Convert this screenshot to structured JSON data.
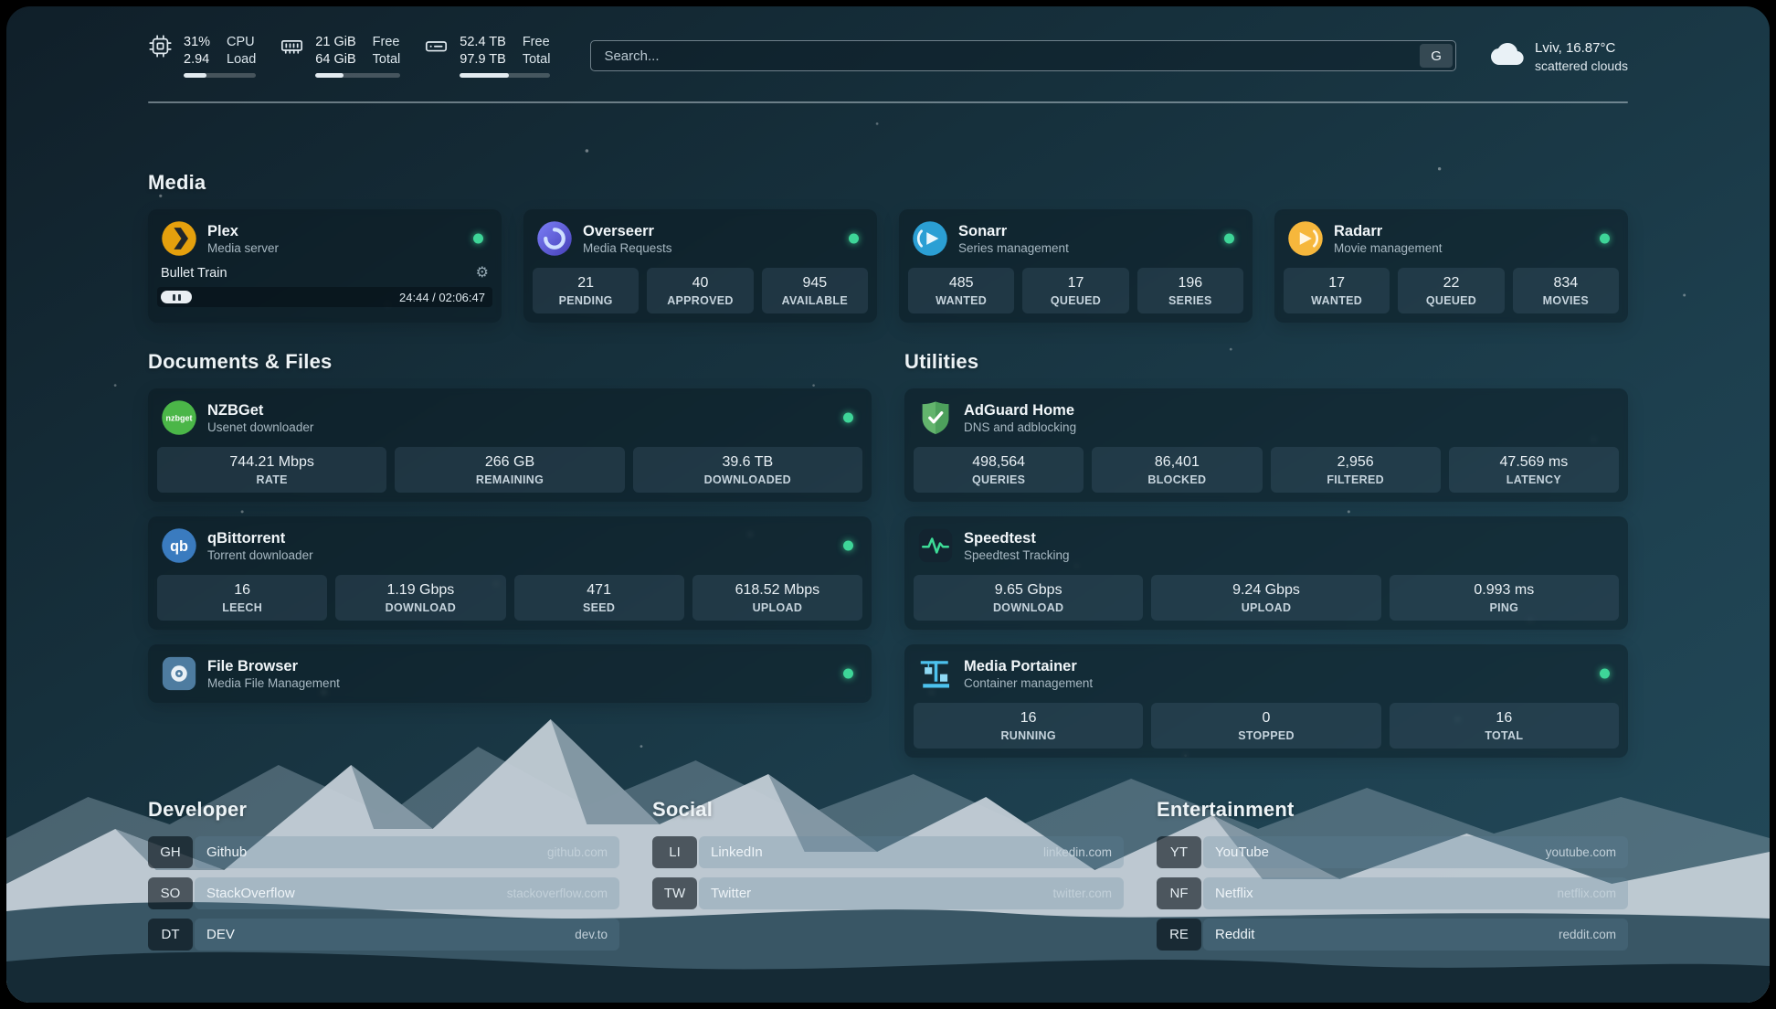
{
  "header": {
    "resources": [
      {
        "icon": "cpu-icon",
        "row1_value": "31%",
        "row1_label": "CPU",
        "row2_value": "2.94",
        "row2_label": "Load",
        "bar_percent": 31
      },
      {
        "icon": "memory-icon",
        "row1_value": "21 GiB",
        "row1_label": "Free",
        "row2_value": "64 GiB",
        "row2_label": "Total",
        "bar_percent": 33
      },
      {
        "icon": "disk-icon",
        "row1_value": "52.4 TB",
        "row1_label": "Free",
        "row2_value": "97.9 TB",
        "row2_label": "Total",
        "bar_percent": 54
      }
    ],
    "search": {
      "placeholder": "Search...",
      "provider_label": "G"
    },
    "weather": {
      "icon": "cloud-icon",
      "location": "Lviv, 16.87°C",
      "condition": "scattered clouds"
    }
  },
  "sections": {
    "media": {
      "title": "Media",
      "services": [
        {
          "icon": "plex-icon",
          "name": "Plex",
          "subtitle": "Media server",
          "status": "online",
          "player": {
            "track": "Bullet Train",
            "time": "24:44 / 02:06:47"
          }
        },
        {
          "icon": "overseerr-icon",
          "name": "Overseerr",
          "subtitle": "Media Requests",
          "status": "online",
          "stats": [
            {
              "value": "21",
              "label": "PENDING"
            },
            {
              "value": "40",
              "label": "APPROVED"
            },
            {
              "value": "945",
              "label": "AVAILABLE"
            }
          ]
        },
        {
          "icon": "sonarr-icon",
          "name": "Sonarr",
          "subtitle": "Series management",
          "status": "online",
          "stats": [
            {
              "value": "485",
              "label": "WANTED"
            },
            {
              "value": "17",
              "label": "QUEUED"
            },
            {
              "value": "196",
              "label": "SERIES"
            }
          ]
        },
        {
          "icon": "radarr-icon",
          "name": "Radarr",
          "subtitle": "Movie management",
          "status": "online",
          "stats": [
            {
              "value": "17",
              "label": "WANTED"
            },
            {
              "value": "22",
              "label": "QUEUED"
            },
            {
              "value": "834",
              "label": "MOVIES"
            }
          ]
        }
      ]
    },
    "documents": {
      "title": "Documents & Files",
      "services": [
        {
          "icon": "nzbget-icon",
          "name": "NZBGet",
          "subtitle": "Usenet downloader",
          "status": "online",
          "stats": [
            {
              "value": "744.21 Mbps",
              "label": "RATE"
            },
            {
              "value": "266 GB",
              "label": "REMAINING"
            },
            {
              "value": "39.6 TB",
              "label": "DOWNLOADED"
            }
          ]
        },
        {
          "icon": "qbittorrent-icon",
          "name": "qBittorrent",
          "subtitle": "Torrent downloader",
          "status": "online",
          "stats": [
            {
              "value": "16",
              "label": "LEECH"
            },
            {
              "value": "1.19 Gbps",
              "label": "DOWNLOAD"
            },
            {
              "value": "471",
              "label": "SEED"
            },
            {
              "value": "618.52 Mbps",
              "label": "UPLOAD"
            }
          ]
        },
        {
          "icon": "filebrowser-icon",
          "name": "File Browser",
          "subtitle": "Media File Management",
          "status": "online"
        }
      ]
    },
    "utilities": {
      "title": "Utilities",
      "services": [
        {
          "icon": "adguard-icon",
          "name": "AdGuard Home",
          "subtitle": "DNS and adblocking",
          "stats": [
            {
              "value": "498,564",
              "label": "QUERIES"
            },
            {
              "value": "86,401",
              "label": "BLOCKED"
            },
            {
              "value": "2,956",
              "label": "FILTERED"
            },
            {
              "value": "47.569 ms",
              "label": "LATENCY"
            }
          ]
        },
        {
          "icon": "speedtest-icon",
          "name": "Speedtest",
          "subtitle": "Speedtest Tracking",
          "stats": [
            {
              "value": "9.65 Gbps",
              "label": "DOWNLOAD"
            },
            {
              "value": "9.24 Gbps",
              "label": "UPLOAD"
            },
            {
              "value": "0.993 ms",
              "label": "PING"
            }
          ]
        },
        {
          "icon": "portainer-icon",
          "name": "Media Portainer",
          "subtitle": "Container management",
          "status": "online",
          "stats": [
            {
              "value": "16",
              "label": "RUNNING"
            },
            {
              "value": "0",
              "label": "STOPPED"
            },
            {
              "value": "16",
              "label": "TOTAL"
            }
          ]
        }
      ]
    }
  },
  "bookmarks": [
    {
      "title": "Developer",
      "items": [
        {
          "abbr": "GH",
          "name": "Github",
          "url": "github.com"
        },
        {
          "abbr": "SO",
          "name": "StackOverflow",
          "url": "stackoverflow.com"
        },
        {
          "abbr": "DT",
          "name": "DEV",
          "url": "dev.to"
        }
      ]
    },
    {
      "title": "Social",
      "items": [
        {
          "abbr": "LI",
          "name": "LinkedIn",
          "url": "linkedin.com"
        },
        {
          "abbr": "TW",
          "name": "Twitter",
          "url": "twitter.com"
        }
      ]
    },
    {
      "title": "Entertainment",
      "items": [
        {
          "abbr": "YT",
          "name": "YouTube",
          "url": "youtube.com"
        },
        {
          "abbr": "NF",
          "name": "Netflix",
          "url": "netflix.com"
        },
        {
          "abbr": "RE",
          "name": "Reddit",
          "url": "reddit.com"
        }
      ]
    }
  ],
  "colors": {
    "status_online": "#3ed598",
    "plex": "#e5a00d",
    "overseerr": "#5d5bd4",
    "sonarr": "#2b9fd4",
    "radarr": "#f6b73c",
    "nzbget": "#4bb648",
    "qbittorrent": "#3a7bbf",
    "filebrowser": "#4e7ca0",
    "adguard": "#63b46d",
    "speedtest_accent": "#3ddc97",
    "portainer": "#4cc2ee"
  }
}
